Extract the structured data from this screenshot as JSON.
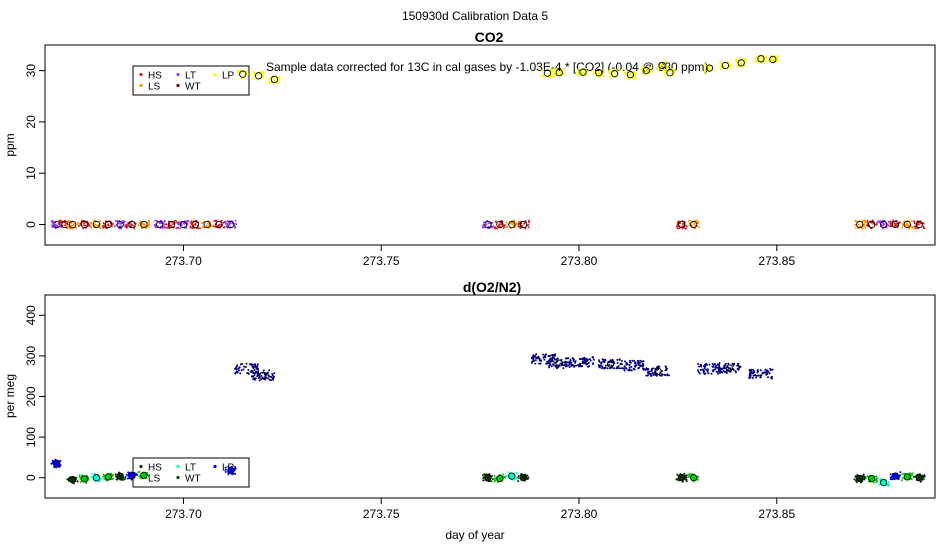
{
  "figure_title": "150930d   Calibration Data 5",
  "colors": {
    "HS": "#e41a1c",
    "LS": "#ff9900",
    "LT": "#9933ff",
    "WT": "#660000",
    "LP": "#ffff00",
    "sample": "#000080",
    "HS2": "#003300",
    "LS2": "#00cc00",
    "LT2": "#00ffcc",
    "WT2": "#004400",
    "LP2": "#0000ff"
  },
  "chart_data": [
    {
      "type": "scatter",
      "title": "CO2",
      "xlabel": "",
      "ylabel": "ppm",
      "xlim": [
        273.665,
        273.89
      ],
      "ylim": [
        -4,
        35
      ],
      "xticks": [
        "273.70",
        "273.75",
        "273.80",
        "273.85"
      ],
      "xtick_values": [
        273.7,
        273.75,
        273.8,
        273.85
      ],
      "yticks": [
        "0",
        "10",
        "20",
        "30"
      ],
      "ytick_values": [
        0,
        10,
        20,
        30
      ],
      "annotation": "Sample data corrected for 13C in cal gases by -1.03E-4 * [CO2] (-0.04 @ 380 ppm)",
      "legend": {
        "placement": "top-left",
        "entries": [
          "HS",
          "LT",
          "LP",
          "LS",
          "WT"
        ]
      },
      "clusters": [
        {
          "x": 273.668,
          "y": 0,
          "series": "LT"
        },
        {
          "x": 273.67,
          "y": 0,
          "series": "HS"
        },
        {
          "x": 273.672,
          "y": 0,
          "series": "LS"
        },
        {
          "x": 273.675,
          "y": 0,
          "series": "HS"
        },
        {
          "x": 273.678,
          "y": 0,
          "series": "LS"
        },
        {
          "x": 273.681,
          "y": 0,
          "series": "HS"
        },
        {
          "x": 273.684,
          "y": 0,
          "series": "LT"
        },
        {
          "x": 273.687,
          "y": 0,
          "series": "HS"
        },
        {
          "x": 273.69,
          "y": 0,
          "series": "LS"
        },
        {
          "x": 273.694,
          "y": 0,
          "series": "LT"
        },
        {
          "x": 273.697,
          "y": 0,
          "series": "HS"
        },
        {
          "x": 273.7,
          "y": 0,
          "series": "LT"
        },
        {
          "x": 273.703,
          "y": 0,
          "series": "HS"
        },
        {
          "x": 273.706,
          "y": 0,
          "series": "LS"
        },
        {
          "x": 273.709,
          "y": 0,
          "series": "HS"
        },
        {
          "x": 273.712,
          "y": 0,
          "series": "LT"
        },
        {
          "x": 273.715,
          "y": 29.3,
          "series": "LP"
        },
        {
          "x": 273.719,
          "y": 29.0,
          "series": "LP"
        },
        {
          "x": 273.723,
          "y": 28.3,
          "series": "LP"
        },
        {
          "x": 273.777,
          "y": 0,
          "series": "LT"
        },
        {
          "x": 273.78,
          "y": 0,
          "series": "HS"
        },
        {
          "x": 273.783,
          "y": 0,
          "series": "LS"
        },
        {
          "x": 273.786,
          "y": 0,
          "series": "HS"
        },
        {
          "x": 273.792,
          "y": 29.5,
          "series": "LP"
        },
        {
          "x": 273.795,
          "y": 29.6,
          "series": "LP"
        },
        {
          "x": 273.801,
          "y": 29.7,
          "series": "LP"
        },
        {
          "x": 273.805,
          "y": 29.6,
          "series": "LP"
        },
        {
          "x": 273.809,
          "y": 29.4,
          "series": "LP"
        },
        {
          "x": 273.813,
          "y": 29.2,
          "series": "LP"
        },
        {
          "x": 273.817,
          "y": 30.0,
          "series": "LP"
        },
        {
          "x": 273.821,
          "y": 31.0,
          "series": "LP"
        },
        {
          "x": 273.823,
          "y": 29.6,
          "series": "LP"
        },
        {
          "x": 273.826,
          "y": 0,
          "series": "HS"
        },
        {
          "x": 273.829,
          "y": 0,
          "series": "LS"
        },
        {
          "x": 273.833,
          "y": 30.5,
          "series": "LP"
        },
        {
          "x": 273.837,
          "y": 31.0,
          "series": "LP"
        },
        {
          "x": 273.841,
          "y": 31.5,
          "series": "LP"
        },
        {
          "x": 273.846,
          "y": 32.3,
          "series": "LP"
        },
        {
          "x": 273.849,
          "y": 32.2,
          "series": "LP"
        },
        {
          "x": 273.871,
          "y": 0,
          "series": "LS"
        },
        {
          "x": 273.874,
          "y": 0,
          "series": "HS"
        },
        {
          "x": 273.877,
          "y": 0,
          "series": "LT"
        },
        {
          "x": 273.88,
          "y": 0,
          "series": "HS"
        },
        {
          "x": 273.883,
          "y": 0,
          "series": "LS"
        },
        {
          "x": 273.886,
          "y": 0,
          "series": "HS"
        }
      ]
    },
    {
      "type": "scatter",
      "title": "d(O2/N2)",
      "xlabel": "day of year",
      "ylabel": "per meg",
      "xlim": [
        273.665,
        273.89
      ],
      "ylim": [
        -50,
        450
      ],
      "xticks": [
        "273.70",
        "273.75",
        "273.80",
        "273.85"
      ],
      "xtick_values": [
        273.7,
        273.75,
        273.8,
        273.85
      ],
      "yticks": [
        "0",
        "100",
        "200",
        "300",
        "400"
      ],
      "ytick_values": [
        0,
        100,
        200,
        300,
        400
      ],
      "legend": {
        "placement": "bottom-left",
        "entries": [
          "HS",
          "LT",
          "LP",
          "LS",
          "WT"
        ]
      },
      "clusters": [
        {
          "x": 273.668,
          "y": 35,
          "series": "LP2"
        },
        {
          "x": 273.672,
          "y": -5,
          "series": "HS2"
        },
        {
          "x": 273.675,
          "y": -3,
          "series": "LS2"
        },
        {
          "x": 273.678,
          "y": 0,
          "series": "LT2"
        },
        {
          "x": 273.681,
          "y": 2,
          "series": "LS2"
        },
        {
          "x": 273.684,
          "y": 4,
          "series": "HS2"
        },
        {
          "x": 273.687,
          "y": 5,
          "series": "LP2"
        },
        {
          "x": 273.69,
          "y": 6,
          "series": "LS2"
        },
        {
          "x": 273.712,
          "y": 18,
          "series": "LP2"
        },
        {
          "x": 273.716,
          "y": 268,
          "series": "sample"
        },
        {
          "x": 273.72,
          "y": 252,
          "series": "sample"
        },
        {
          "x": 273.777,
          "y": 0,
          "series": "HS2"
        },
        {
          "x": 273.78,
          "y": -2,
          "series": "LS2"
        },
        {
          "x": 273.783,
          "y": 4,
          "series": "LT2"
        },
        {
          "x": 273.786,
          "y": 0,
          "series": "HS2"
        },
        {
          "x": 273.791,
          "y": 292,
          "series": "sample"
        },
        {
          "x": 273.795,
          "y": 282,
          "series": "sample"
        },
        {
          "x": 273.801,
          "y": 285,
          "series": "sample"
        },
        {
          "x": 273.808,
          "y": 280,
          "series": "sample"
        },
        {
          "x": 273.814,
          "y": 276,
          "series": "sample"
        },
        {
          "x": 273.82,
          "y": 262,
          "series": "sample"
        },
        {
          "x": 273.826,
          "y": 0,
          "series": "HS2"
        },
        {
          "x": 273.829,
          "y": 0,
          "series": "LS2"
        },
        {
          "x": 273.833,
          "y": 268,
          "series": "sample"
        },
        {
          "x": 273.838,
          "y": 270,
          "series": "sample"
        },
        {
          "x": 273.846,
          "y": 256,
          "series": "sample"
        },
        {
          "x": 273.871,
          "y": -2,
          "series": "HS2"
        },
        {
          "x": 273.874,
          "y": -2,
          "series": "LS2"
        },
        {
          "x": 273.877,
          "y": -12,
          "series": "LT2"
        },
        {
          "x": 273.88,
          "y": 4,
          "series": "LP2"
        },
        {
          "x": 273.883,
          "y": 2,
          "series": "LS2"
        },
        {
          "x": 273.886,
          "y": 0,
          "series": "HS2"
        }
      ]
    }
  ]
}
